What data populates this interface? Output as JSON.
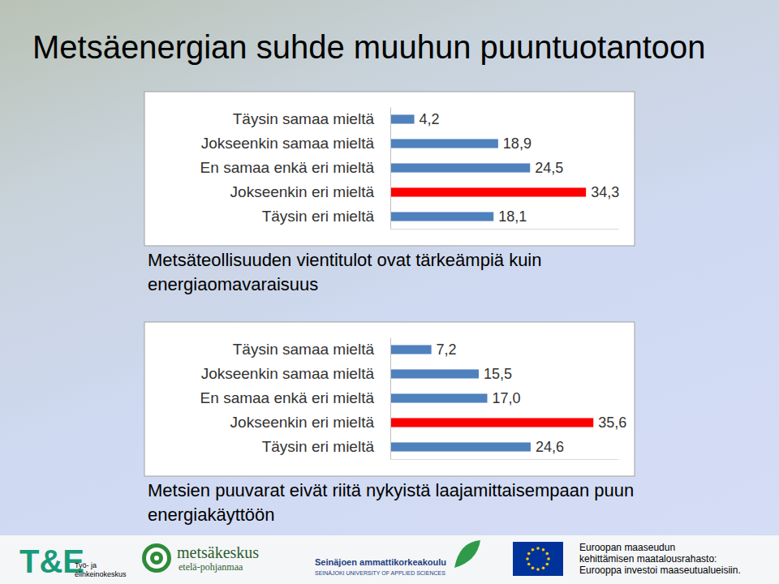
{
  "slide_title": "Metsäenergian suhde muuhun puuntuotantoon",
  "chart_data": [
    {
      "type": "bar",
      "orientation": "horizontal",
      "title": "Metsäteollisuuden vientitulot ovat tärkeämpiä kuin energiaomavaraisuus",
      "categories": [
        "Täysin samaa mieltä",
        "Jokseenkin samaa mieltä",
        "En samaa enkä eri mieltä",
        "Jokseenkin eri mieltä",
        "Täysin eri mieltä"
      ],
      "values": [
        4.2,
        18.9,
        24.5,
        34.3,
        18.1
      ],
      "value_labels": [
        "4,2",
        "18,9",
        "24,5",
        "34,3",
        "18,1"
      ],
      "colors": [
        "#4f81bd",
        "#4f81bd",
        "#4f81bd",
        "#ff0000",
        "#4f81bd"
      ],
      "xlim": [
        0,
        40
      ],
      "data_labels": true,
      "tick_labels": "y",
      "grid": false
    },
    {
      "type": "bar",
      "orientation": "horizontal",
      "title": "Metsien puuvarat eivät riitä nykyistä laajamittaisempaan puun energiakäyttöön",
      "categories": [
        "Täysin samaa mieltä",
        "Jokseenkin samaa mieltä",
        "En samaa enkä eri mieltä",
        "Jokseenkin eri mieltä",
        "Täysin eri mieltä"
      ],
      "values": [
        7.2,
        15.5,
        17.0,
        35.6,
        24.6
      ],
      "value_labels": [
        "7,2",
        "15,5",
        "17,0",
        "35,6",
        "24,6"
      ],
      "colors": [
        "#4f81bd",
        "#4f81bd",
        "#4f81bd",
        "#ff0000",
        "#4f81bd"
      ],
      "xlim": [
        0,
        40
      ],
      "data_labels": true,
      "tick_labels": "y",
      "grid": false
    }
  ],
  "footer": {
    "te_logo": [
      "T&E",
      "Työ- ja",
      "elinkeinokeskus"
    ],
    "metsakeskus": [
      "metsäkeskus",
      "etelä-pohjanmaa"
    ],
    "seamk": [
      "Seinäjoen ammattikorkeakoulu",
      "SEINÄJOKI UNIVERSITY OF APPLIED SCIENCES"
    ],
    "eu": [
      "Euroopan maaseudun",
      "kehittämisen maatalousrahasto:",
      "Eurooppa investoi maaseutualueisiin."
    ]
  }
}
